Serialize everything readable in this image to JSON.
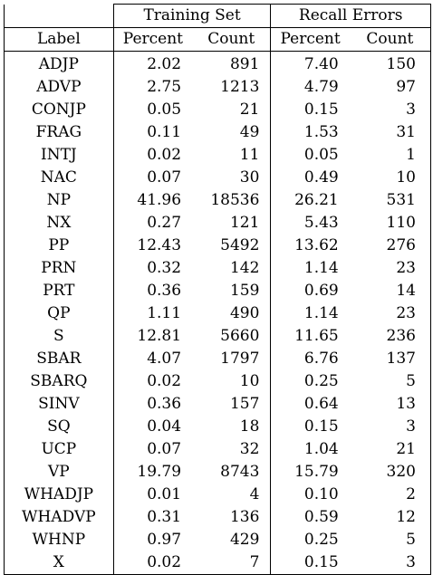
{
  "table": {
    "group_headers": {
      "training": "Training Set",
      "recall": "Recall Errors"
    },
    "column_headers": {
      "label": "Label",
      "training_percent": "Percent",
      "training_count": "Count",
      "recall_percent": "Percent",
      "recall_count": "Count"
    },
    "rows": [
      {
        "label": "ADJP",
        "train_pct": "2.02",
        "train_count": "891",
        "recall_pct": "7.40",
        "recall_count": "150"
      },
      {
        "label": "ADVP",
        "train_pct": "2.75",
        "train_count": "1213",
        "recall_pct": "4.79",
        "recall_count": "97"
      },
      {
        "label": "CONJP",
        "train_pct": "0.05",
        "train_count": "21",
        "recall_pct": "0.15",
        "recall_count": "3"
      },
      {
        "label": "FRAG",
        "train_pct": "0.11",
        "train_count": "49",
        "recall_pct": "1.53",
        "recall_count": "31"
      },
      {
        "label": "INTJ",
        "train_pct": "0.02",
        "train_count": "11",
        "recall_pct": "0.05",
        "recall_count": "1"
      },
      {
        "label": "NAC",
        "train_pct": "0.07",
        "train_count": "30",
        "recall_pct": "0.49",
        "recall_count": "10"
      },
      {
        "label": "NP",
        "train_pct": "41.96",
        "train_count": "18536",
        "recall_pct": "26.21",
        "recall_count": "531"
      },
      {
        "label": "NX",
        "train_pct": "0.27",
        "train_count": "121",
        "recall_pct": "5.43",
        "recall_count": "110"
      },
      {
        "label": "PP",
        "train_pct": "12.43",
        "train_count": "5492",
        "recall_pct": "13.62",
        "recall_count": "276"
      },
      {
        "label": "PRN",
        "train_pct": "0.32",
        "train_count": "142",
        "recall_pct": "1.14",
        "recall_count": "23"
      },
      {
        "label": "PRT",
        "train_pct": "0.36",
        "train_count": "159",
        "recall_pct": "0.69",
        "recall_count": "14"
      },
      {
        "label": "QP",
        "train_pct": "1.11",
        "train_count": "490",
        "recall_pct": "1.14",
        "recall_count": "23"
      },
      {
        "label": "S",
        "train_pct": "12.81",
        "train_count": "5660",
        "recall_pct": "11.65",
        "recall_count": "236"
      },
      {
        "label": "SBAR",
        "train_pct": "4.07",
        "train_count": "1797",
        "recall_pct": "6.76",
        "recall_count": "137"
      },
      {
        "label": "SBARQ",
        "train_pct": "0.02",
        "train_count": "10",
        "recall_pct": "0.25",
        "recall_count": "5"
      },
      {
        "label": "SINV",
        "train_pct": "0.36",
        "train_count": "157",
        "recall_pct": "0.64",
        "recall_count": "13"
      },
      {
        "label": "SQ",
        "train_pct": "0.04",
        "train_count": "18",
        "recall_pct": "0.15",
        "recall_count": "3"
      },
      {
        "label": "UCP",
        "train_pct": "0.07",
        "train_count": "32",
        "recall_pct": "1.04",
        "recall_count": "21"
      },
      {
        "label": "VP",
        "train_pct": "19.79",
        "train_count": "8743",
        "recall_pct": "15.79",
        "recall_count": "320"
      },
      {
        "label": "WHADJP",
        "train_pct": "0.01",
        "train_count": "4",
        "recall_pct": "0.10",
        "recall_count": "2"
      },
      {
        "label": "WHADVP",
        "train_pct": "0.31",
        "train_count": "136",
        "recall_pct": "0.59",
        "recall_count": "12"
      },
      {
        "label": "WHNP",
        "train_pct": "0.97",
        "train_count": "429",
        "recall_pct": "0.25",
        "recall_count": "5"
      },
      {
        "label": "X",
        "train_pct": "0.02",
        "train_count": "7",
        "recall_pct": "0.15",
        "recall_count": "3"
      }
    ]
  }
}
